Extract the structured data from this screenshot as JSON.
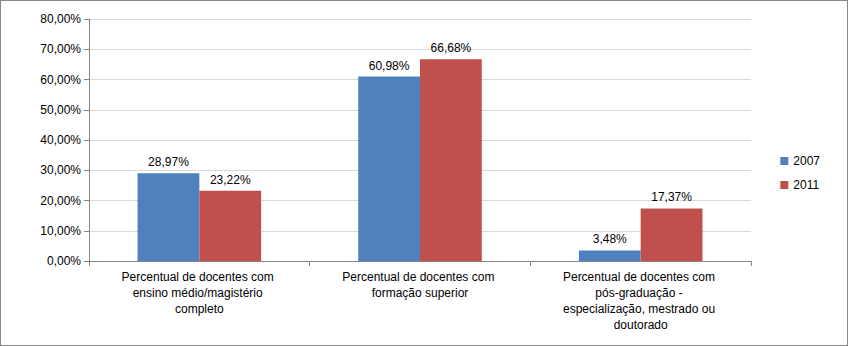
{
  "chart_data": {
    "type": "bar",
    "categories": [
      "Percentual de docentes com ensino médio/magistério completo",
      "Percentual de docentes com formação superior",
      "Percentual de docentes com pós-graduação - especialização, mestrado ou doutorado"
    ],
    "series": [
      {
        "name": "2007",
        "color": "#4f81bd",
        "values": [
          28.97,
          60.98,
          3.48
        ],
        "value_labels": [
          "28,97%",
          "60,98%",
          "3,48%"
        ]
      },
      {
        "name": "2011",
        "color": "#c0504d",
        "values": [
          23.22,
          66.68,
          17.37
        ],
        "value_labels": [
          "23,22%",
          "66,68%",
          "17,37%"
        ]
      }
    ],
    "ylim": [
      0,
      80
    ],
    "yticks": [
      {
        "value": 0,
        "label": "0,00%"
      },
      {
        "value": 10,
        "label": "10,00%"
      },
      {
        "value": 20,
        "label": "20,00%"
      },
      {
        "value": 30,
        "label": "30,00%"
      },
      {
        "value": 40,
        "label": "40,00%"
      },
      {
        "value": 50,
        "label": "50,00%"
      },
      {
        "value": 60,
        "label": "60,00%"
      },
      {
        "value": 70,
        "label": "70,00%"
      },
      {
        "value": 80,
        "label": "80,00%"
      }
    ],
    "grid": true,
    "legend": "right",
    "data_labels": true
  }
}
